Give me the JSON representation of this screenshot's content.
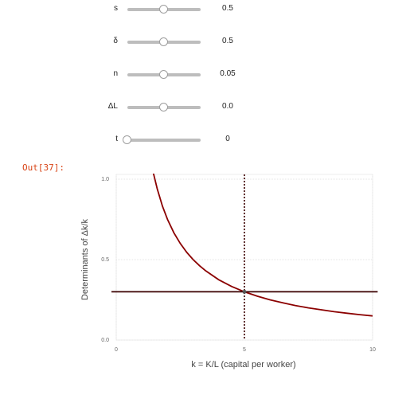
{
  "sliders": [
    {
      "label": "s",
      "value": 0.5,
      "min": 0,
      "max": 1,
      "value_text": "0.5"
    },
    {
      "label": "δ",
      "value": 0.5,
      "min": 0,
      "max": 1,
      "value_text": "0.5"
    },
    {
      "label": "n",
      "value": 0.05,
      "min": 0,
      "max": 0.1,
      "value_text": "0.05"
    },
    {
      "label": "ΔL",
      "value": 0.0,
      "min": -1,
      "max": 1,
      "value_text": "0.0"
    },
    {
      "label": "t",
      "value": 0,
      "min": 0,
      "max": 100,
      "value_text": "0"
    }
  ],
  "out_prompt": "Out[37]:",
  "chart_data": {
    "type": "line",
    "title": "",
    "xlabel": "k = K/L (capital per worker)",
    "ylabel": "Determinants of Δk/k",
    "xlim": [
      0,
      10
    ],
    "ylim": [
      0,
      1
    ],
    "x_ticks": [
      0,
      5,
      10
    ],
    "x_tick_labels": [
      "0",
      "5",
      "10"
    ],
    "y_ticks": [
      0,
      0.5,
      1
    ],
    "y_tick_labels": [
      "0.0",
      "0.5",
      "1.0"
    ],
    "grid": true,
    "legend": "none",
    "series": [
      {
        "color": "#8b0000",
        "x": [
          1.4,
          1.6,
          1.8,
          2,
          2.25,
          2.5,
          2.75,
          3,
          3.25,
          3.5,
          4,
          4.5,
          5,
          5.5,
          6,
          6.5,
          7,
          7.5,
          8,
          8.5,
          9,
          9.5,
          10
        ],
        "y": [
          1.07,
          0.94,
          0.833,
          0.75,
          0.667,
          0.6,
          0.545,
          0.5,
          0.462,
          0.429,
          0.375,
          0.333,
          0.3,
          0.273,
          0.25,
          0.231,
          0.214,
          0.2,
          0.188,
          0.176,
          0.167,
          0.158,
          0.15
        ]
      },
      {
        "color": "#3b0000",
        "x": [
          -0.2,
          10.2
        ],
        "y": [
          0.3,
          0.3
        ]
      }
    ],
    "vline": {
      "x": 5,
      "color": "#3b0000",
      "style": "dotted"
    },
    "marker": {
      "x": 5,
      "y": 0.3
    }
  }
}
